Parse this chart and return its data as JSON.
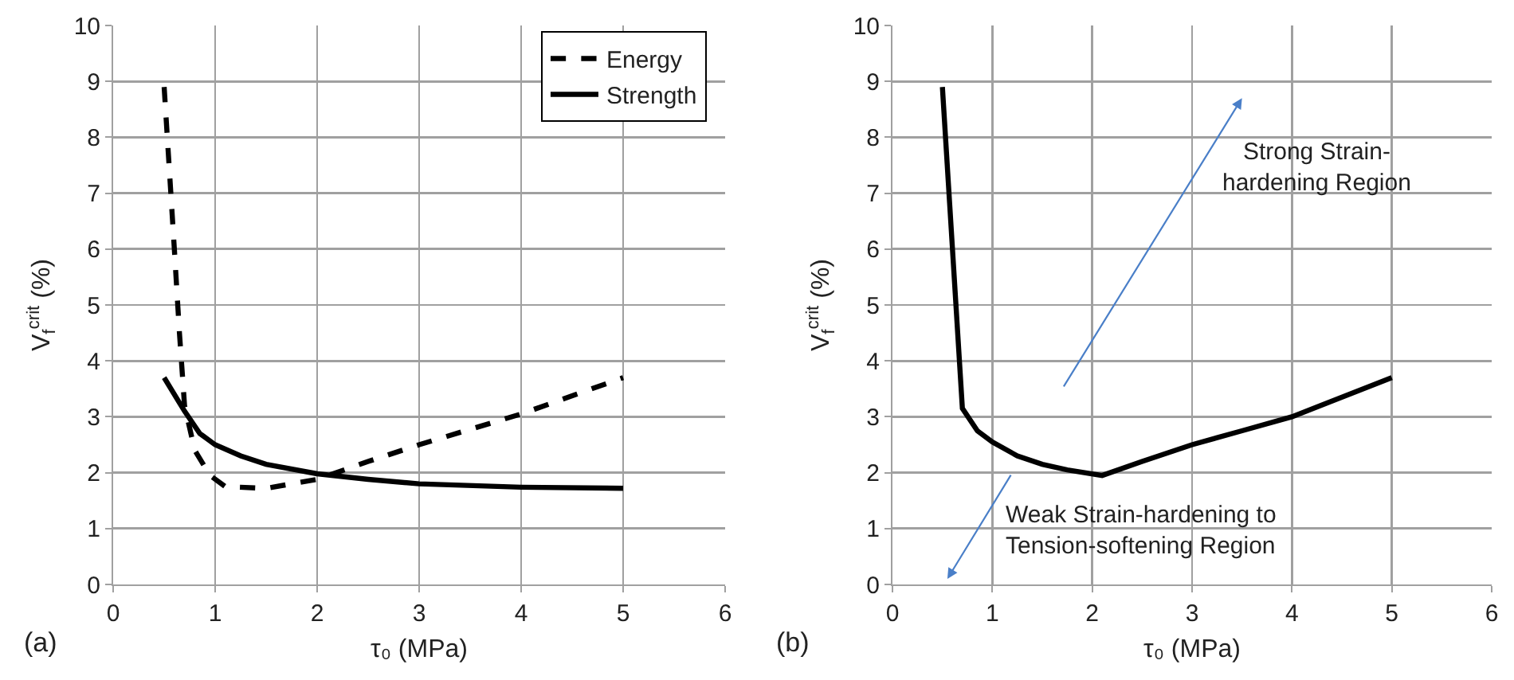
{
  "chart_data": [
    {
      "type": "line",
      "xlabel": "τ₀ (MPa)",
      "ylabel": "V$_{f}$$^{crit}$ (%)",
      "xlim": [
        0,
        6
      ],
      "xticks": [
        0,
        1,
        2,
        3,
        4,
        5,
        6
      ],
      "ylim": [
        0,
        10
      ],
      "yticks": [
        0,
        1,
        2,
        3,
        4,
        5,
        6,
        7,
        8,
        9,
        10
      ],
      "grid": true,
      "legend": "top right",
      "marker": "none",
      "annotations": [
        "(a)"
      ],
      "series": [
        {
          "name": "Energy",
          "color": "#000000",
          "line_style": "dashed",
          "x": [
            0.5,
            0.6,
            0.65,
            0.7,
            0.8,
            0.95,
            1.1,
            1.5,
            2,
            2.5,
            3,
            4,
            5
          ],
          "values": [
            8.9,
            6,
            4.5,
            3.2,
            2.4,
            1.95,
            1.75,
            1.72,
            1.88,
            2.2,
            2.5,
            3.05,
            3.7
          ]
        },
        {
          "name": "Strength",
          "color": "#000000",
          "line_style": "solid",
          "x": [
            0.5,
            0.7,
            0.85,
            1,
            1.25,
            1.5,
            2,
            2.5,
            3,
            4,
            5
          ],
          "values": [
            3.7,
            3.1,
            2.7,
            2.5,
            2.3,
            2.15,
            1.98,
            1.88,
            1.8,
            1.74,
            1.72
          ]
        }
      ]
    },
    {
      "type": "line",
      "xlabel": "τ₀ (MPa)",
      "ylabel": "V$_{f}$$^{crit}$ (%)",
      "xlim": [
        0,
        6
      ],
      "xticks": [
        0,
        1,
        2,
        3,
        4,
        5,
        6
      ],
      "ylim": [
        0,
        10
      ],
      "yticks": [
        0,
        1,
        2,
        3,
        4,
        5,
        6,
        7,
        8,
        9,
        10
      ],
      "grid": true,
      "marker": "none",
      "annotations": [
        "(b)",
        "Strong Strain-\nhardening Region",
        "Weak Strain-hardening to\nTension-softening Region"
      ],
      "series": [
        {
          "color": "#000000",
          "line_style": "solid",
          "x": [
            0.5,
            0.7,
            0.85,
            1,
            1.25,
            1.5,
            1.75,
            2.1,
            2.5,
            3,
            3.5,
            4,
            5
          ],
          "values": [
            8.9,
            3.15,
            2.75,
            2.55,
            2.3,
            2.15,
            2.05,
            1.95,
            2.2,
            2.5,
            2.75,
            3.0,
            3.7
          ]
        }
      ]
    }
  ]
}
